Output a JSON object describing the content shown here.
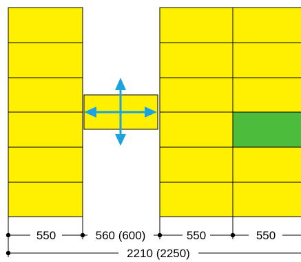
{
  "colors": {
    "tile_fill": "#ffef00",
    "highlight_fill": "#4cbc3c",
    "outline": "#000000",
    "arrow": "#1aa3e0",
    "dimension_line": "#000000"
  },
  "left_panel": {
    "columns": 1,
    "rows": 6
  },
  "right_panel": {
    "columns": 2,
    "rows": 6,
    "highlighted_cell": {
      "column": 2,
      "row": 4
    }
  },
  "movable_tile": {
    "icon": "four-way-move-arrows-icon"
  },
  "dimensions": {
    "segment_1": "550",
    "segment_2": "560 (600)",
    "segment_3": "550",
    "segment_4": "550",
    "total": "2210 (2250)"
  }
}
